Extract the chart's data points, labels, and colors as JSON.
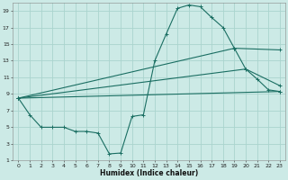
{
  "xlabel": "Humidex (Indice chaleur)",
  "bg_color": "#cceae6",
  "grid_color": "#aad4ce",
  "line_color": "#1a6e62",
  "xlim": [
    -0.5,
    23.5
  ],
  "ylim": [
    1,
    20
  ],
  "xticks": [
    0,
    1,
    2,
    3,
    4,
    5,
    6,
    7,
    8,
    9,
    10,
    11,
    12,
    13,
    14,
    15,
    16,
    17,
    18,
    19,
    20,
    21,
    22,
    23
  ],
  "yticks": [
    1,
    3,
    5,
    7,
    9,
    11,
    13,
    15,
    17,
    19
  ],
  "line1_x": [
    0,
    1,
    2,
    3,
    4,
    5,
    6,
    7,
    8,
    9,
    10,
    11,
    12,
    13,
    14,
    15,
    16,
    17,
    18,
    19,
    20,
    21,
    22,
    23
  ],
  "line1_y": [
    8.5,
    6.5,
    5,
    5,
    5,
    4.5,
    4.5,
    4.3,
    1.8,
    1.9,
    6.3,
    6.5,
    13,
    16.2,
    19.3,
    19.7,
    19.5,
    18.2,
    17,
    14.5,
    12,
    10.8,
    9.5,
    9.3
  ],
  "line2_x": [
    0,
    23
  ],
  "line2_y": [
    8.5,
    9.3
  ],
  "line3_x": [
    0,
    20,
    23
  ],
  "line3_y": [
    8.5,
    12.0,
    10.0
  ],
  "line4_x": [
    0,
    19,
    23
  ],
  "line4_y": [
    8.5,
    14.5,
    14.3
  ]
}
